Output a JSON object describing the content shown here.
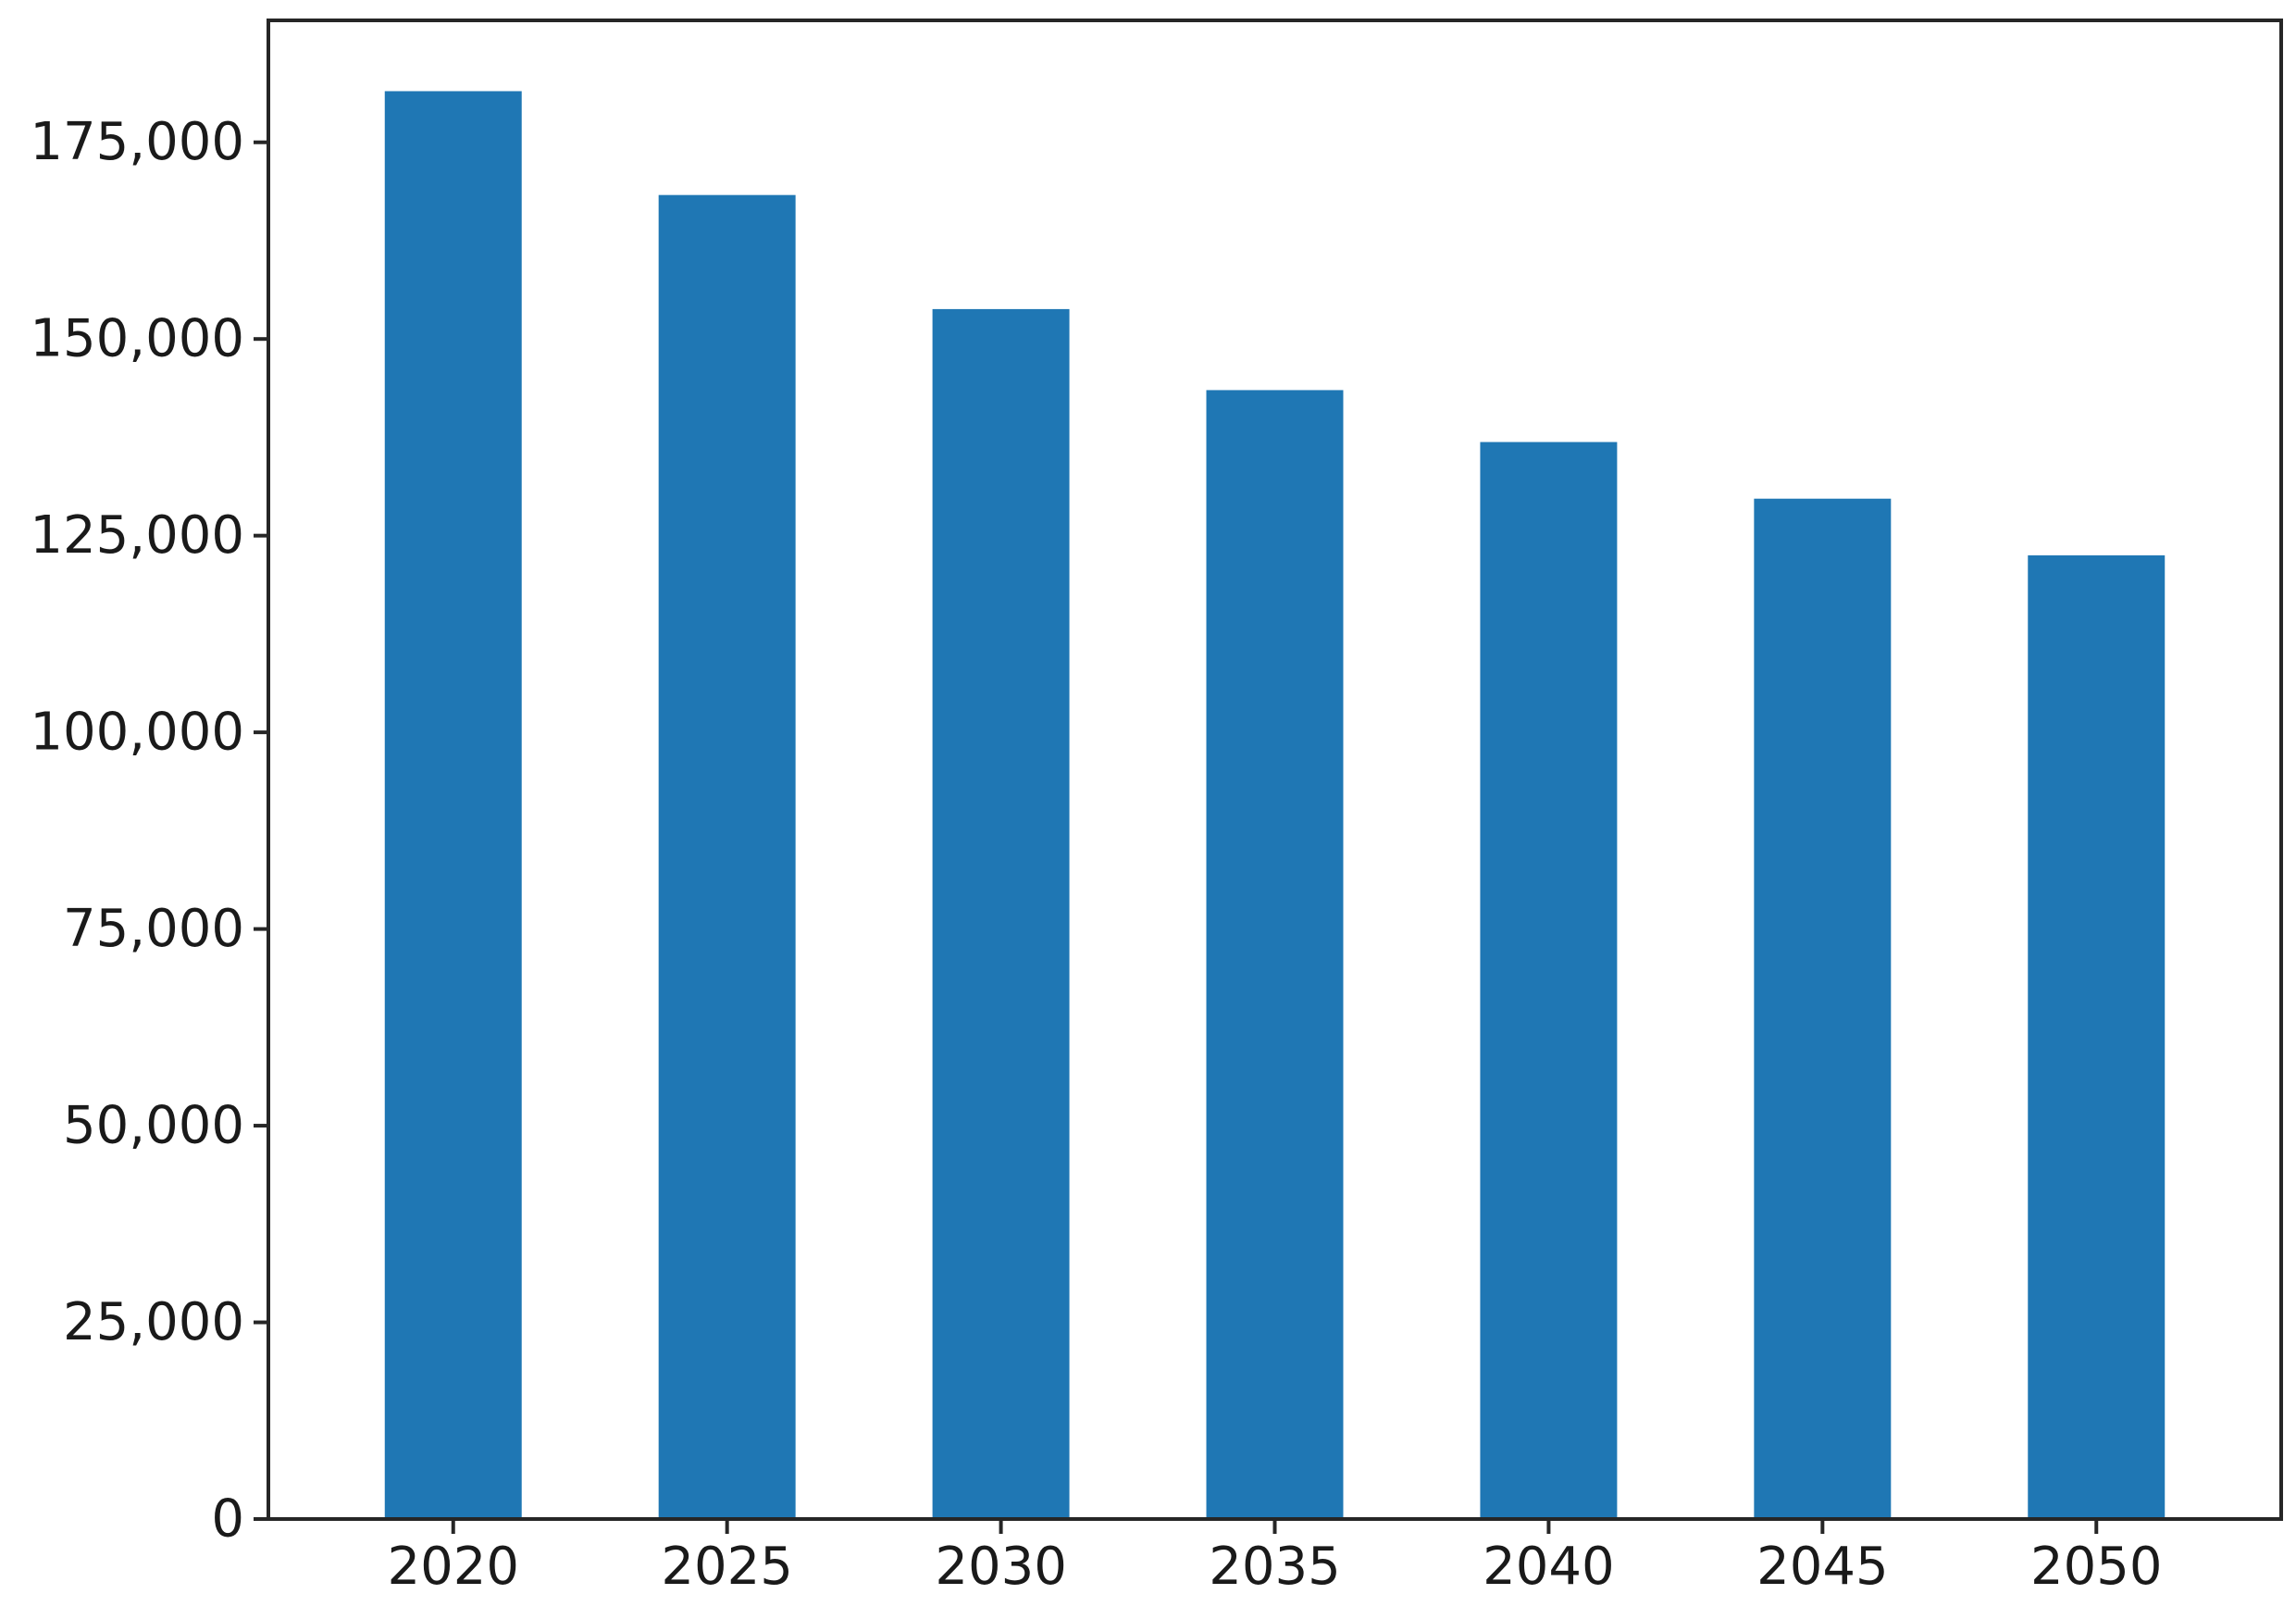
{
  "chart_data": {
    "type": "bar",
    "title": "",
    "xlabel": "",
    "ylabel": "",
    "categories": [
      "2020",
      "2025",
      "2030",
      "2035",
      "2040",
      "2045",
      "2050"
    ],
    "series": [
      {
        "values": [
          181500,
          168300,
          153800,
          143500,
          136900,
          129700,
          122500
        ]
      }
    ],
    "ylim": [
      0,
      190500
    ],
    "yticks": [
      0,
      25000,
      50000,
      75000,
      100000,
      125000,
      150000,
      175000
    ],
    "ytick_labels": [
      "0",
      "25,000",
      "50,000",
      "75,000",
      "100,000",
      "125,000",
      "150,000",
      "175,000"
    ],
    "grid": false,
    "legend": "none",
    "bar_color": "#1f77b4"
  }
}
